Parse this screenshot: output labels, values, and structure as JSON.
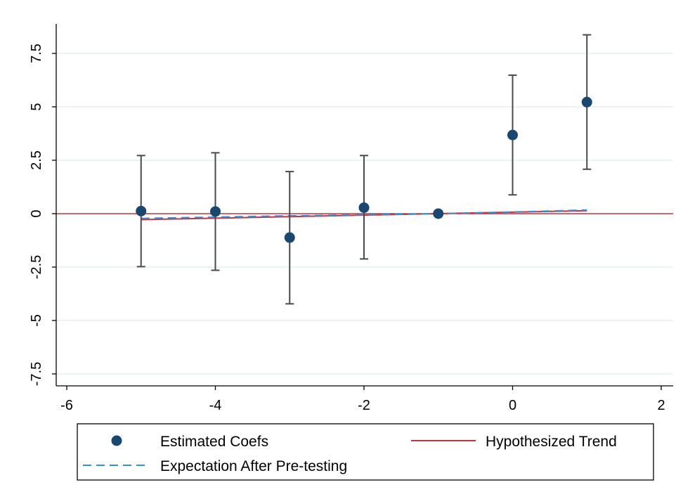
{
  "chart_data": {
    "type": "scatter",
    "title": "",
    "xlabel": "",
    "ylabel": "",
    "xlim": [
      -6.2,
      2.2
    ],
    "ylim": [
      -8,
      8.8
    ],
    "xticks": [
      -6,
      -4,
      -2,
      0,
      2
    ],
    "xtick_labels": [
      "-6",
      "-4",
      "-2",
      "0",
      "2"
    ],
    "yticks": [
      -7.5,
      -5,
      -2.5,
      0,
      2.5,
      5,
      7.5
    ],
    "ytick_labels": [
      "-7.5",
      "-5",
      "-2.5",
      "0",
      "2.5",
      "5",
      "7.5"
    ],
    "grid": true,
    "zero_line": 0,
    "legend_position": "bottom",
    "series": [
      {
        "name": "Estimated Coefs",
        "kind": "points-with-error-bars",
        "color": "#1a476f",
        "points": [
          {
            "x": -5,
            "y": 0.12,
            "lo": -2.48,
            "hi": 2.72
          },
          {
            "x": -4,
            "y": 0.1,
            "lo": -2.65,
            "hi": 2.85
          },
          {
            "x": -3,
            "y": -1.12,
            "lo": -4.22,
            "hi": 1.97
          },
          {
            "x": -2,
            "y": 0.28,
            "lo": -2.12,
            "hi": 2.72
          },
          {
            "x": -1,
            "y": 0.0,
            "lo": 0.0,
            "hi": 0.0
          },
          {
            "x": 0,
            "y": 3.68,
            "lo": 0.88,
            "hi": 6.48
          },
          {
            "x": 1,
            "y": 5.22,
            "lo": 2.08,
            "hi": 8.37
          }
        ]
      },
      {
        "name": "Hypothesized Trend",
        "kind": "line",
        "color": "#c0343e",
        "x": [
          -5,
          -4,
          -3,
          -2,
          -1,
          0,
          1
        ],
        "y": [
          -0.28,
          -0.21,
          -0.14,
          -0.07,
          0.0,
          0.07,
          0.14
        ]
      },
      {
        "name": "Expectation After Pre-testing",
        "kind": "dashed-line",
        "color": "#3a8fd0",
        "x": [
          -5,
          -4,
          -3,
          -2,
          -1,
          0,
          1
        ],
        "y": [
          -0.22,
          -0.16,
          -0.1,
          -0.05,
          0.0,
          0.08,
          0.17
        ]
      }
    ]
  },
  "legend": {
    "items": [
      {
        "label": "Estimated Coefs"
      },
      {
        "label": "Hypothesized Trend"
      },
      {
        "label": "Expectation After Pre-testing"
      }
    ]
  },
  "colors": {
    "axis": "#000000",
    "grid": "#e3eeee",
    "zero_line": "#c0343e"
  }
}
